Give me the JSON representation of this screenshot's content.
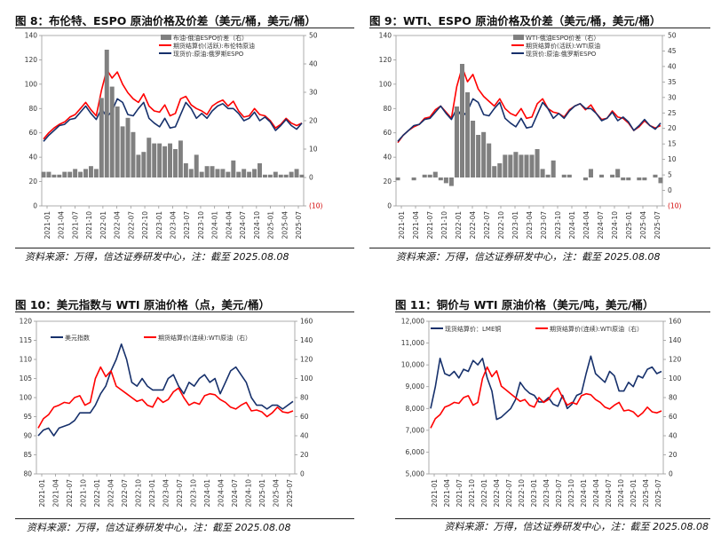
{
  "colors": {
    "red": "#ff0000",
    "navy": "#16306b",
    "gray": "#808080",
    "neg": "#d20000"
  },
  "chart_data": [
    {
      "id": "fig8",
      "type": "line",
      "title": "图 8：布伦特、ESPO 原油价格及价差（美元/桶，美元/桶）",
      "source": "资料来源：万得，信达证券研发中心，注：截至 2025.08.08",
      "y_left": {
        "min": 0,
        "max": 140,
        "step": 20,
        "ticks": [
          "0",
          "20",
          "40",
          "60",
          "80",
          "100",
          "120",
          "140"
        ]
      },
      "y_right": {
        "min": -10,
        "max": 50,
        "ticks": [
          "(10)",
          "0",
          "10",
          "20",
          "30",
          "40",
          "50"
        ]
      },
      "x_ticks": [
        "2021-01",
        "2021-04",
        "2021-07",
        "2021-10",
        "2022-01",
        "2022-04",
        "2022-07",
        "2022-10",
        "2023-01",
        "2023-04",
        "2023-07",
        "2023-10",
        "2024-01",
        "2024-04",
        "2024-07",
        "2024-10",
        "2025-01",
        "2025-04",
        "2025-07"
      ],
      "legend": [
        "布油-俄油ESPO价差（右）",
        "期货结算价(活跃):布伦特原油",
        "现货价:原油:俄罗斯ESPO"
      ],
      "series": [
        {
          "name": "期货结算价(活跃):布伦特原油",
          "color": "red",
          "axis": "left",
          "values": [
            55,
            60,
            64,
            67,
            69,
            73,
            75,
            80,
            85,
            79,
            74,
            95,
            112,
            105,
            110,
            100,
            93,
            88,
            85,
            92,
            82,
            78,
            77,
            83,
            74,
            76,
            88,
            90,
            83,
            80,
            78,
            75,
            82,
            85,
            87,
            82,
            86,
            78,
            73,
            74,
            80,
            75,
            74,
            70,
            64,
            67,
            72,
            68,
            66,
            68
          ]
        },
        {
          "name": "现货价:原油:俄罗斯ESPO",
          "color": "navy",
          "axis": "left",
          "values": [
            53,
            58,
            62,
            66,
            67,
            71,
            72,
            77,
            82,
            76,
            71,
            80,
            73,
            78,
            88,
            85,
            75,
            74,
            80,
            85,
            72,
            68,
            65,
            72,
            64,
            65,
            75,
            85,
            80,
            72,
            76,
            72,
            78,
            82,
            84,
            80,
            80,
            76,
            70,
            72,
            77,
            70,
            73,
            69,
            62,
            66,
            71,
            66,
            63,
            68
          ]
        },
        {
          "name": "布油-俄油ESPO价差（右）",
          "color": "gray",
          "axis": "right",
          "type": "bar",
          "values": [
            2,
            2,
            1,
            1,
            2,
            2,
            3,
            2,
            3,
            4,
            3,
            28,
            45,
            32,
            25,
            18,
            21,
            16,
            8,
            9,
            14,
            12,
            12,
            11,
            12,
            10,
            13,
            5,
            3,
            8,
            2,
            4,
            4,
            3,
            3,
            2,
            6,
            2,
            3,
            2,
            3,
            5,
            1,
            1,
            2,
            1,
            1,
            2,
            3,
            1
          ]
        }
      ]
    },
    {
      "id": "fig9",
      "type": "line",
      "title": "图 9：WTI、ESPO 原油价格及价差（美元/桶，美元/桶）",
      "source": "资料来源：万得，信达证券研发中心，注：截至 2025.08.08",
      "y_left": {
        "min": 0,
        "max": 140,
        "step": 20,
        "ticks": [
          "0",
          "20",
          "40",
          "60",
          "80",
          "100",
          "120",
          "140"
        ]
      },
      "y_right": {
        "min": -10,
        "max": 50,
        "ticks": [
          "(10)",
          "0",
          "5",
          "10",
          "15",
          "20",
          "25",
          "30",
          "35",
          "40",
          "45",
          "50"
        ]
      },
      "x_ticks": [
        "2021-01",
        "2021-04",
        "2021-07",
        "2021-10",
        "2022-01",
        "2022-04",
        "2022-07",
        "2022-10",
        "2023-01",
        "2023-04",
        "2023-07",
        "2023-10",
        "2024-01",
        "2024-04",
        "2024-07",
        "2024-10",
        "2025-01",
        "2025-04",
        "2025-07"
      ],
      "legend": [
        "WTI-俄油ESPO价差（右）",
        "期货结算价(活跃):WTI原油",
        "现货价:原油:俄罗斯ESPO"
      ],
      "series": [
        {
          "name": "期货结算价(活跃):WTI原油",
          "color": "red",
          "axis": "left",
          "values": [
            52,
            58,
            62,
            65,
            67,
            72,
            73,
            79,
            82,
            77,
            72,
            98,
            114,
            102,
            108,
            96,
            90,
            86,
            82,
            88,
            80,
            76,
            74,
            80,
            72,
            73,
            84,
            88,
            80,
            77,
            76,
            73,
            79,
            82,
            84,
            79,
            83,
            76,
            71,
            72,
            78,
            73,
            72,
            68,
            62,
            65,
            70,
            66,
            64,
            66
          ]
        },
        {
          "name": "现货价:原油:俄罗斯ESPO",
          "color": "navy",
          "axis": "left",
          "values": [
            53,
            58,
            62,
            66,
            67,
            71,
            72,
            77,
            82,
            76,
            71,
            80,
            73,
            78,
            88,
            85,
            75,
            74,
            80,
            85,
            72,
            68,
            65,
            72,
            64,
            65,
            75,
            85,
            80,
            72,
            76,
            72,
            78,
            82,
            84,
            80,
            80,
            76,
            70,
            72,
            77,
            70,
            73,
            69,
            62,
            66,
            71,
            66,
            63,
            68
          ]
        },
        {
          "name": "WTI-俄油ESPO价差（右）",
          "color": "gray",
          "axis": "right",
          "type": "bar",
          "values": [
            -1,
            0,
            0,
            -1,
            0,
            1,
            1,
            2,
            -1,
            -2,
            -3,
            25,
            40,
            30,
            20,
            15,
            16,
            12,
            4,
            5,
            8,
            8,
            9,
            8,
            8,
            8,
            10,
            3,
            1,
            6,
            0,
            1,
            1,
            0,
            0,
            -1,
            3,
            0,
            1,
            0,
            1,
            3,
            -1,
            -1,
            0,
            -1,
            -1,
            0,
            1,
            -2
          ]
        }
      ]
    },
    {
      "id": "fig10",
      "type": "line",
      "title": "图 10：美元指数与 WTI 原油价格（点，美元/桶）",
      "source": "资料来源：万得，信达证券研发中心，注：截至 2025.08.08",
      "y_left": {
        "min": 80,
        "max": 120,
        "ticks": [
          "80",
          "85",
          "90",
          "95",
          "100",
          "105",
          "110",
          "115",
          "120"
        ]
      },
      "y_right": {
        "min": 0,
        "max": 160,
        "ticks": [
          "0",
          "20",
          "40",
          "60",
          "80",
          "100",
          "120",
          "140",
          "160"
        ]
      },
      "x_ticks": [
        "2021-01",
        "2021-04",
        "2021-07",
        "2021-10",
        "2022-01",
        "2022-04",
        "2022-07",
        "2022-10",
        "2023-01",
        "2023-04",
        "2023-07",
        "2023-10",
        "2024-01",
        "2024-04",
        "2024-07",
        "2024-10",
        "2025-01",
        "2025-04",
        "2025-07"
      ],
      "legend": [
        "美元指数",
        "期货结算价(连续):WTI原油（右）"
      ],
      "series": [
        {
          "name": "美元指数",
          "color": "navy",
          "axis": "left",
          "values": [
            90,
            91.5,
            92,
            90,
            92,
            92.5,
            93,
            94,
            96,
            96,
            96,
            98,
            101,
            103,
            107,
            110,
            114,
            110,
            104,
            103,
            105,
            103,
            102,
            102,
            102,
            105,
            106,
            103,
            101,
            104,
            103,
            105,
            106,
            104,
            105,
            101,
            104,
            107,
            108,
            106,
            104,
            100,
            98,
            98,
            97,
            98,
            98,
            97,
            98,
            99
          ]
        },
        {
          "name": "期货结算价(连续):WTI原油（右）",
          "color": "red",
          "axis": "right",
          "values": [
            48,
            58,
            62,
            70,
            72,
            75,
            74,
            80,
            82,
            72,
            75,
            100,
            112,
            102,
            108,
            92,
            88,
            84,
            80,
            76,
            78,
            72,
            70,
            80,
            75,
            78,
            86,
            90,
            80,
            72,
            75,
            73,
            82,
            84,
            83,
            78,
            75,
            70,
            68,
            72,
            75,
            66,
            67,
            65,
            60,
            64,
            70,
            65,
            64,
            66
          ]
        }
      ]
    },
    {
      "id": "fig11",
      "type": "line",
      "title": "图 11：铜价与 WTI 原油价格（美元/吨，美元/桶）",
      "source": "资料来源：万得，信达证券研发中心，注：截至 2025.08.08",
      "y_left": {
        "min": 5000,
        "max": 12000,
        "ticks": [
          "5,000",
          "6,000",
          "7,000",
          "8,000",
          "9,000",
          "10,000",
          "11,000",
          "12,000"
        ]
      },
      "y_right": {
        "min": 0,
        "max": 160,
        "ticks": [
          "0",
          "20",
          "40",
          "60",
          "80",
          "100",
          "120",
          "140",
          "160"
        ]
      },
      "x_ticks": [
        "2021-01",
        "2021-04",
        "2021-07",
        "2021-10",
        "2022-01",
        "2022-04",
        "2022-07",
        "2022-10",
        "2023-01",
        "2023-04",
        "2023-07",
        "2023-10",
        "2024-01",
        "2024-04",
        "2024-07",
        "2024-10",
        "2025-01",
        "2025-04",
        "2025-07"
      ],
      "legend": [
        "现货结算价：LME铜",
        "期货结算价(连续):WTI原油（右）"
      ],
      "series": [
        {
          "name": "现货结算价：LME铜",
          "color": "navy",
          "axis": "left",
          "values": [
            8000,
            9000,
            10300,
            9600,
            9500,
            9700,
            9400,
            9800,
            9700,
            10200,
            10000,
            10300,
            9400,
            8800,
            7500,
            7600,
            7800,
            8000,
            8400,
            9200,
            8900,
            8700,
            8600,
            8300,
            8300,
            8500,
            8200,
            8100,
            8600,
            8000,
            8200,
            8600,
            8700,
            9600,
            10400,
            9600,
            9400,
            9200,
            9700,
            9500,
            8800,
            8800,
            9200,
            9000,
            9500,
            9400,
            9800,
            9900,
            9600,
            9700
          ]
        },
        {
          "name": "期货结算价(连续):WTI原油（右）",
          "color": "red",
          "axis": "right",
          "values": [
            48,
            58,
            62,
            70,
            72,
            75,
            74,
            80,
            82,
            72,
            75,
            100,
            112,
            102,
            108,
            92,
            88,
            84,
            80,
            76,
            78,
            72,
            70,
            80,
            75,
            78,
            86,
            90,
            80,
            72,
            75,
            73,
            82,
            84,
            83,
            78,
            75,
            70,
            68,
            72,
            75,
            66,
            67,
            65,
            60,
            64,
            70,
            65,
            64,
            66
          ]
        }
      ]
    }
  ]
}
